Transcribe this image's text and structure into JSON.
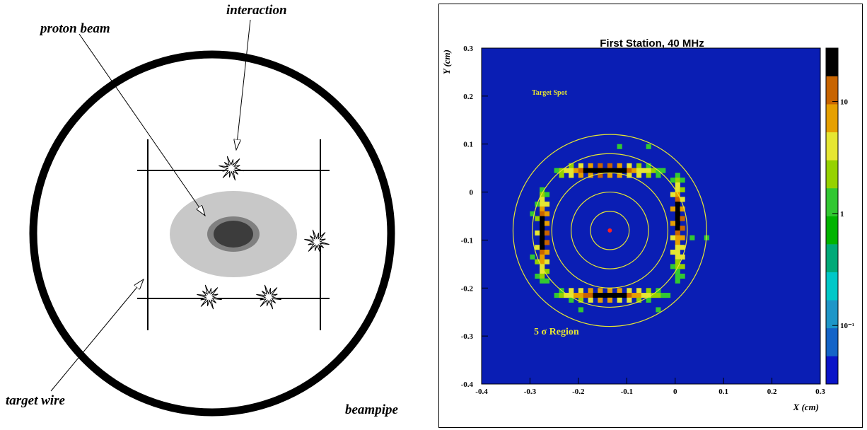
{
  "diagram": {
    "labels": {
      "proton_beam": "proton beam",
      "interaction": "interaction",
      "target_wire": "target wire",
      "beampipe": "beampipe"
    }
  },
  "chart_data": {
    "type": "heatmap",
    "title": "First Station, 40 MHz",
    "x_label": "X (cm)",
    "y_label": "Y (cm)",
    "annotations": {
      "target_spot": "Target Spot",
      "region": "5 σ Region"
    },
    "xlim": [
      -0.4,
      0.3
    ],
    "ylim": [
      -0.4,
      0.3
    ],
    "xticks": [
      -0.4,
      -0.3,
      -0.2,
      -0.1,
      0,
      0.1,
      0.2,
      0.3
    ],
    "yticks": [
      -0.4,
      -0.3,
      -0.2,
      -0.1,
      0,
      0.1,
      0.2,
      0.3
    ],
    "log_z": true,
    "zlim": [
      0.03,
      30
    ],
    "zticks": [
      {
        "value": 0.1,
        "label": "10⁻¹"
      },
      1,
      10
    ],
    "background": "#0a1eb4",
    "palette": [
      "#0a14c8",
      "#1464c8",
      "#1e96c8",
      "#00c8c8",
      "#00aa78",
      "#00b400",
      "#32c832",
      "#96d200",
      "#e6e632",
      "#e6a000",
      "#c86400",
      "#000000"
    ],
    "bin": 0.01,
    "groups": [
      {
        "y": 0.05,
        "x": [
          -0.22,
          -0.2,
          -0.18,
          -0.16,
          -0.14,
          -0.12,
          -0.1,
          -0.08,
          -0.06
        ],
        "values": [
          2,
          3,
          8,
          12,
          10,
          6,
          3,
          2,
          1
        ]
      },
      {
        "y": 0.04,
        "x": [
          -0.25,
          -0.24,
          -0.23,
          -0.22,
          -0.21,
          -0.2,
          -0.19,
          -0.18,
          -0.17,
          -0.16,
          -0.15,
          -0.14,
          -0.13,
          -0.12,
          -0.11,
          -0.1,
          -0.09,
          -0.08,
          -0.07,
          -0.06,
          -0.05,
          -0.04,
          -0.03
        ],
        "values": [
          1,
          2,
          3,
          5,
          8,
          12,
          25,
          28,
          30,
          28,
          25,
          30,
          27,
          25,
          22,
          10,
          8,
          5,
          4,
          3,
          2,
          1,
          1
        ]
      },
      {
        "y": 0.03,
        "x": [
          -0.24,
          -0.22,
          -0.2,
          -0.18,
          -0.16,
          -0.14,
          -0.12,
          -0.1,
          -0.08,
          -0.06,
          -0.04
        ],
        "values": [
          2,
          4,
          6,
          8,
          10,
          8,
          6,
          4,
          3,
          2,
          1
        ]
      },
      {
        "y": -0.21,
        "x": [
          -0.24,
          -0.22,
          -0.2,
          -0.18,
          -0.16,
          -0.14,
          -0.12,
          -0.1,
          -0.08,
          -0.06,
          -0.04
        ],
        "values": [
          1,
          3,
          5,
          7,
          9,
          8,
          6,
          5,
          3,
          2,
          1
        ]
      },
      {
        "y": -0.22,
        "x": [
          -0.25,
          -0.24,
          -0.23,
          -0.22,
          -0.21,
          -0.2,
          -0.19,
          -0.18,
          -0.17,
          -0.16,
          -0.15,
          -0.14,
          -0.13,
          -0.12,
          -0.11,
          -0.1,
          -0.09,
          -0.08,
          -0.07,
          -0.06,
          -0.05,
          -0.04,
          -0.03,
          -0.02
        ],
        "values": [
          1,
          2,
          3,
          4,
          6,
          9,
          12,
          15,
          24,
          28,
          30,
          26,
          28,
          25,
          24,
          12,
          8,
          6,
          4,
          3,
          2,
          2,
          1,
          1
        ]
      },
      {
        "y": -0.23,
        "x": [
          -0.22,
          -0.2,
          -0.18,
          -0.16,
          -0.14,
          -0.12,
          -0.1,
          -0.08,
          -0.06
        ],
        "values": [
          1,
          2,
          4,
          6,
          8,
          5,
          3,
          2,
          1
        ]
      },
      {
        "x": -0.29,
        "y": [
          -0.03,
          -0.06,
          -0.09,
          -0.12,
          -0.15,
          -0.18
        ],
        "values": [
          1,
          2,
          3,
          3,
          2,
          1
        ]
      },
      {
        "x": -0.28,
        "y": [
          0,
          -0.01,
          -0.02,
          -0.03,
          -0.04,
          -0.05,
          -0.06,
          -0.07,
          -0.08,
          -0.09,
          -0.1,
          -0.11,
          -0.12,
          -0.13,
          -0.14,
          -0.15,
          -0.16,
          -0.17,
          -0.18,
          -0.19
        ],
        "values": [
          1,
          2,
          3,
          5,
          7,
          10,
          22,
          26,
          28,
          30,
          27,
          24,
          22,
          12,
          9,
          6,
          4,
          3,
          2,
          1
        ]
      },
      {
        "x": -0.27,
        "y": [
          -0.01,
          -0.03,
          -0.05,
          -0.07,
          -0.09,
          -0.11,
          -0.13,
          -0.15,
          -0.17,
          -0.19
        ],
        "values": [
          1,
          3,
          6,
          9,
          12,
          10,
          7,
          4,
          2,
          1
        ]
      },
      {
        "x": 0,
        "y": [
          0.03,
          0.02,
          0.01,
          0,
          -0.01,
          -0.02,
          -0.03,
          -0.04,
          -0.05,
          -0.06,
          -0.07,
          -0.08,
          -0.09,
          -0.1,
          -0.11,
          -0.12,
          -0.13,
          -0.14,
          -0.15,
          -0.16,
          -0.17,
          -0.18,
          -0.19
        ],
        "values": [
          1,
          2,
          3,
          5,
          8,
          12,
          24,
          28,
          30,
          28,
          26,
          24,
          12,
          9,
          7,
          5,
          4,
          3,
          2,
          2,
          1,
          1,
          1
        ]
      },
      {
        "x": 0.01,
        "y": [
          0.02,
          0,
          -0.02,
          -0.04,
          -0.06,
          -0.08,
          -0.1,
          -0.12,
          -0.14,
          -0.16,
          -0.18
        ],
        "values": [
          1,
          2,
          4,
          8,
          12,
          10,
          6,
          4,
          3,
          2,
          1
        ]
      },
      {
        "x": -0.01,
        "y": [
          0.02,
          -0.01,
          -0.04,
          -0.07,
          -0.1,
          -0.13,
          -0.16
        ],
        "values": [
          1,
          3,
          6,
          8,
          5,
          3,
          1
        ]
      },
      {
        "x": -0.3,
        "y": [
          -0.05,
          -0.14
        ],
        "values": [
          1,
          1
        ]
      },
      {
        "y": 0.09,
        "x": [
          -0.12,
          -0.06
        ],
        "values": [
          1,
          1
        ]
      },
      {
        "y": -0.1,
        "x": [
          0.03,
          0.06
        ],
        "values": [
          1,
          1
        ]
      },
      {
        "y": -0.25,
        "x": [
          -0.2,
          -0.04
        ],
        "values": [
          1,
          1
        ]
      }
    ],
    "circles": {
      "center": [
        -0.135,
        -0.08
      ],
      "radii": [
        0.04,
        0.08,
        0.12,
        0.16,
        0.2
      ],
      "color": "#e6e632",
      "center_color": "#ff2020"
    }
  }
}
